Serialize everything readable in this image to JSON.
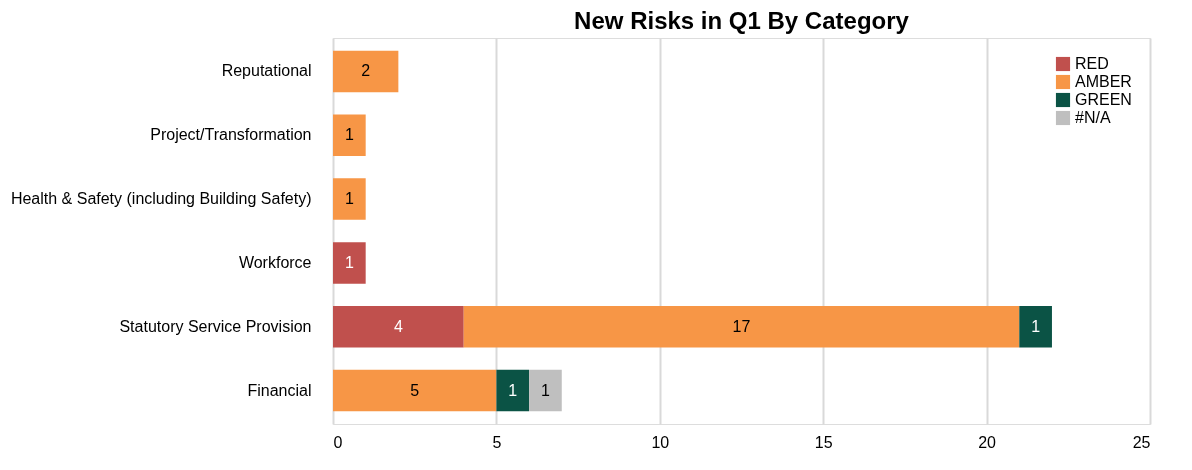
{
  "chart_data": {
    "type": "bar",
    "orientation": "horizontal",
    "stacked": true,
    "title": "New Risks in Q1 By Category",
    "categories": [
      "Reputational",
      "Project/Transformation",
      "Health & Safety (including Building Safety)",
      "Workforce",
      "Statutory Service Provision",
      "Financial"
    ],
    "series": [
      {
        "name": "RED",
        "color": "#c0504d",
        "values": [
          null,
          null,
          null,
          1,
          4,
          null
        ]
      },
      {
        "name": "AMBER",
        "color": "#f79646",
        "values": [
          2,
          1,
          1,
          null,
          17,
          5
        ]
      },
      {
        "name": "GREEN",
        "color": "#0b5345",
        "values": [
          null,
          null,
          null,
          null,
          1,
          1
        ]
      },
      {
        "name": "#N/A",
        "color": "#bfbfbf",
        "values": [
          null,
          null,
          null,
          null,
          null,
          1
        ]
      }
    ],
    "xlim": [
      0,
      25
    ],
    "xticks": [
      0,
      5,
      10,
      15,
      20,
      25
    ],
    "grid": "x",
    "legend": "top right",
    "data_labels": true
  }
}
